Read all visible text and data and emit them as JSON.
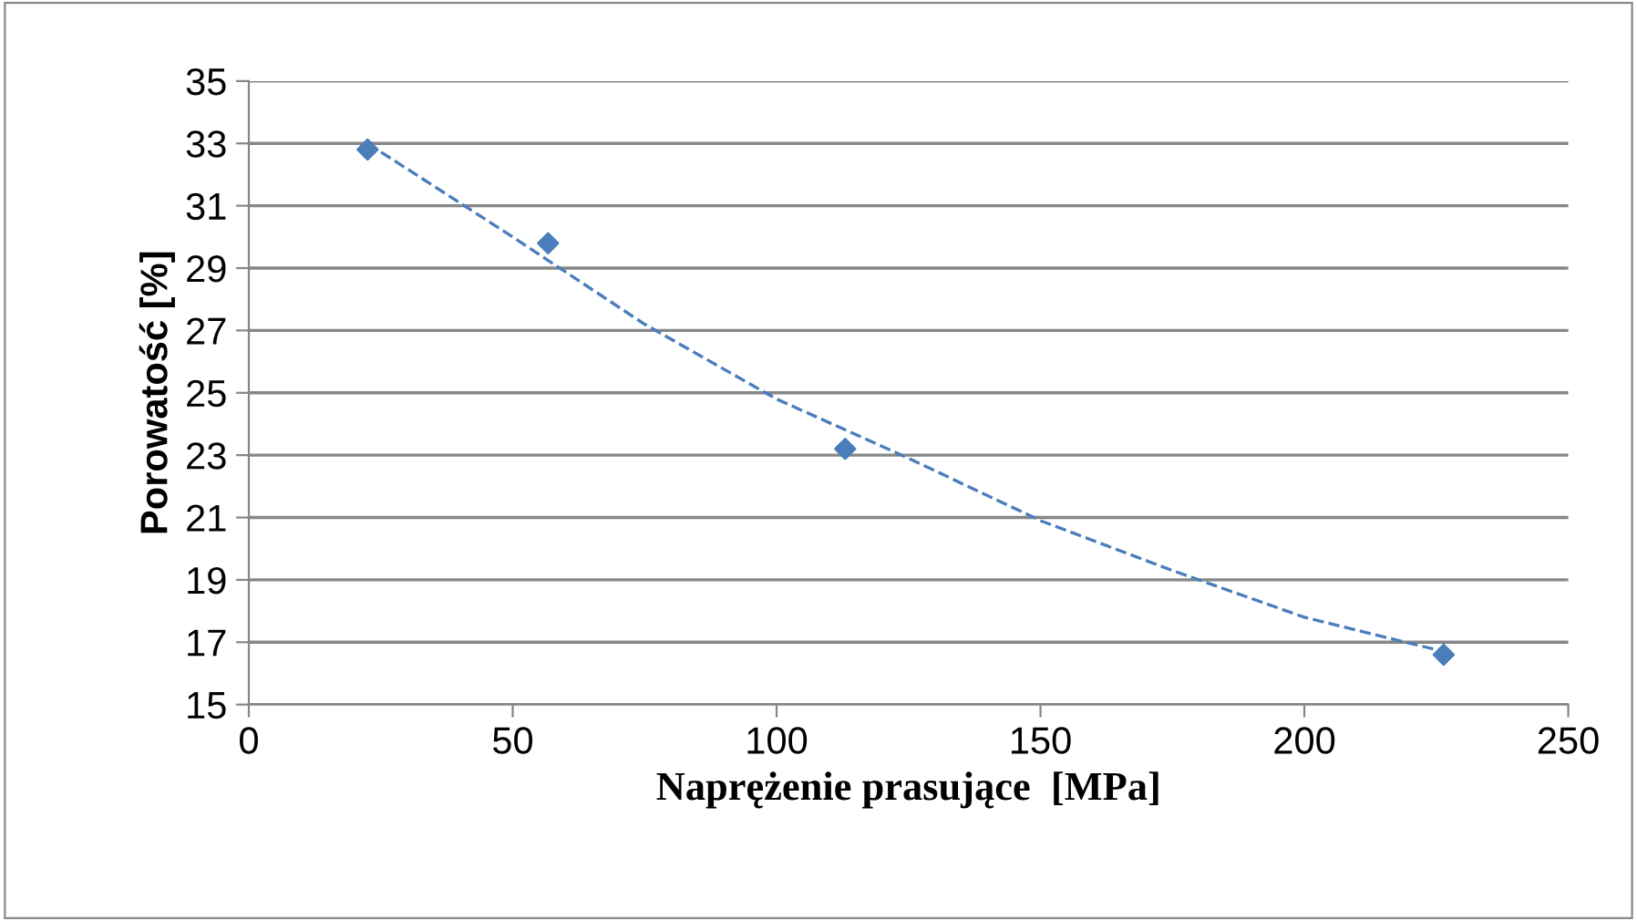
{
  "chart_data": {
    "type": "scatter",
    "xlabel": "Naprężenie prasujące  [MPa]",
    "ylabel": "Porowatość [%]",
    "xlim": [
      0,
      250
    ],
    "xticks": [
      0,
      50,
      100,
      150,
      200,
      250
    ],
    "ylim": [
      15,
      35
    ],
    "yticks": [
      15,
      17,
      19,
      21,
      23,
      25,
      27,
      29,
      31,
      33,
      35
    ],
    "grid": "y",
    "legend": false,
    "series": [
      {
        "color": "#4a7ebb",
        "marker": "diamond",
        "x": [
          22.5,
          56.7,
          113,
          226.4
        ],
        "values": [
          32.8,
          29.8,
          23.2,
          16.6
        ]
      },
      {
        "type": "line",
        "color": "#4a7ebb",
        "line_style": "dashed",
        "marker": "none",
        "x": [
          22.5,
          50,
          75,
          100,
          125,
          150,
          175,
          200,
          226.4
        ],
        "values": [
          33.0,
          30.0,
          27.2,
          24.8,
          22.9,
          20.9,
          19.3,
          17.8,
          16.7
        ]
      }
    ]
  }
}
